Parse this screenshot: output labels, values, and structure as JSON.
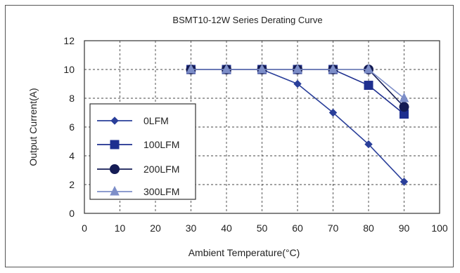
{
  "chart_data": {
    "type": "line",
    "title": "BSMT10-12W Series Derating Curve",
    "xlabel": "Ambient Temperature(°C)",
    "ylabel": "Output Current(A)",
    "xlim": [
      0,
      100
    ],
    "ylim": [
      0,
      12
    ],
    "xticks": [
      "0",
      "10",
      "20",
      "30",
      "40",
      "50",
      "60",
      "70",
      "80",
      "90",
      "100"
    ],
    "yticks": [
      "0",
      "2",
      "4",
      "6",
      "8",
      "10",
      "12"
    ],
    "grid": "dashed",
    "legend_position": "left",
    "series": [
      {
        "name": "0LFM",
        "marker": "diamond",
        "color": "#2a3f9a",
        "x": [
          30,
          40,
          50,
          60,
          70,
          80,
          90
        ],
        "y": [
          10,
          10,
          10,
          9,
          7,
          4.8,
          2.2
        ]
      },
      {
        "name": "100LFM",
        "marker": "square",
        "color": "#1e2f8f",
        "x": [
          30,
          40,
          50,
          60,
          70,
          80,
          90
        ],
        "y": [
          10,
          10,
          10,
          10,
          10,
          8.9,
          6.9
        ]
      },
      {
        "name": "200LFM",
        "marker": "circle",
        "color": "#151c55",
        "x": [
          30,
          40,
          50,
          60,
          70,
          80,
          90
        ],
        "y": [
          10,
          10,
          10,
          10,
          10,
          10,
          7.4
        ]
      },
      {
        "name": "300LFM",
        "marker": "triangle",
        "color": "#7d8ec8",
        "x": [
          30,
          40,
          50,
          60,
          70,
          80,
          90
        ],
        "y": [
          10,
          10,
          10,
          10,
          10,
          10,
          8
        ]
      }
    ]
  }
}
